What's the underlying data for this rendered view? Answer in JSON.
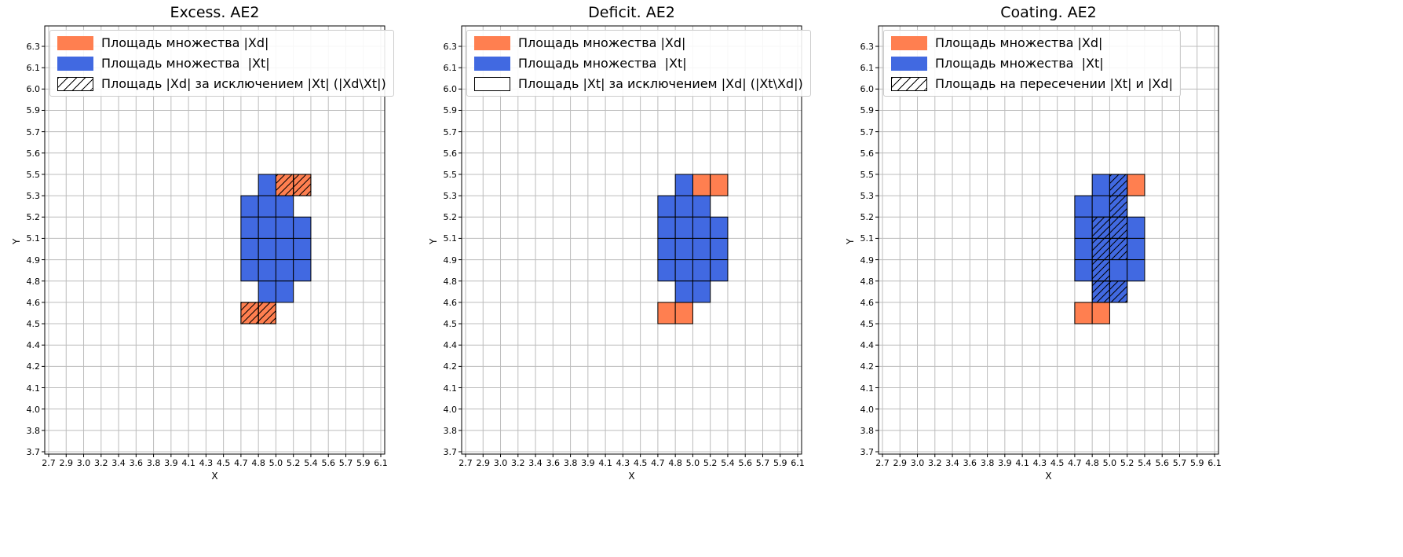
{
  "colors": {
    "orange": "#ff7f50",
    "blue": "#4169e1",
    "grid": "#bcbcbc",
    "axes_edge": "#000000",
    "cell_edge": "#000000",
    "hatch_line": "#000000",
    "legend_border": "#cccccc",
    "text": "#000000"
  },
  "chart_data": [
    {
      "type": "heatmap",
      "title": "Excess. AE2",
      "xlabel": "X",
      "ylabel": "Y",
      "grid": true,
      "legend_position": "upper left",
      "x_ticks": [
        "2.7",
        "2.9",
        "3.0",
        "3.2",
        "3.4",
        "3.6",
        "3.8",
        "3.9",
        "4.1",
        "4.3",
        "4.5",
        "4.7",
        "4.8",
        "5.0",
        "5.2",
        "5.4",
        "5.6",
        "5.7",
        "5.9",
        "6.1"
      ],
      "y_ticks_top_to_bottom": [
        "6.3",
        "6.1",
        "6.0",
        "5.9",
        "5.7",
        "5.6",
        "5.5",
        "5.3",
        "5.2",
        "5.1",
        "4.9",
        "4.8",
        "4.6",
        "4.5",
        "4.4",
        "4.2",
        "4.1",
        "4.0",
        "3.8",
        "3.7"
      ],
      "legend": [
        {
          "swatch": "solid-orange",
          "label": "Площадь множества |Xd|"
        },
        {
          "swatch": "solid-blue",
          "label": "Площадь множества  |Xt|"
        },
        {
          "swatch": "hatch",
          "label": "Площадь |Xd| за исключением |Xt| (|Xd\\Xt|)"
        }
      ],
      "cells": {
        "blue": [
          [
            12,
            6
          ],
          [
            11,
            7
          ],
          [
            12,
            7
          ],
          [
            13,
            7
          ],
          [
            11,
            8
          ],
          [
            12,
            8
          ],
          [
            13,
            8
          ],
          [
            14,
            8
          ],
          [
            11,
            9
          ],
          [
            12,
            9
          ],
          [
            13,
            9
          ],
          [
            14,
            9
          ],
          [
            11,
            10
          ],
          [
            12,
            10
          ],
          [
            13,
            10
          ],
          [
            14,
            10
          ],
          [
            12,
            11
          ],
          [
            13,
            11
          ]
        ],
        "orange": [
          [
            13,
            6
          ],
          [
            14,
            6
          ],
          [
            11,
            12
          ],
          [
            12,
            12
          ]
        ],
        "hatched": [
          [
            13,
            6
          ],
          [
            14,
            6
          ],
          [
            11,
            12
          ],
          [
            12,
            12
          ]
        ]
      }
    },
    {
      "type": "heatmap",
      "title": "Deficit. AE2",
      "xlabel": "X",
      "ylabel": "Y",
      "grid": true,
      "legend_position": "upper left",
      "x_ticks": [
        "2.7",
        "2.9",
        "3.0",
        "3.2",
        "3.4",
        "3.6",
        "3.8",
        "3.9",
        "4.1",
        "4.3",
        "4.5",
        "4.7",
        "4.8",
        "5.0",
        "5.2",
        "5.4",
        "5.6",
        "5.7",
        "5.9",
        "6.1"
      ],
      "y_ticks_top_to_bottom": [
        "6.3",
        "6.1",
        "6.0",
        "5.9",
        "5.7",
        "5.6",
        "5.5",
        "5.3",
        "5.2",
        "5.1",
        "4.9",
        "4.8",
        "4.6",
        "4.5",
        "4.4",
        "4.2",
        "4.1",
        "4.0",
        "3.8",
        "3.7"
      ],
      "legend": [
        {
          "swatch": "solid-orange",
          "label": "Площадь множества |Xd|"
        },
        {
          "swatch": "solid-blue",
          "label": "Площадь множества  |Xt|"
        },
        {
          "swatch": "empty",
          "label": "Площадь |Xt| за исключением |Xd| (|Xt\\Xd|)"
        }
      ],
      "cells": {
        "blue": [
          [
            12,
            6
          ],
          [
            11,
            7
          ],
          [
            12,
            7
          ],
          [
            13,
            7
          ],
          [
            11,
            8
          ],
          [
            12,
            8
          ],
          [
            13,
            8
          ],
          [
            14,
            8
          ],
          [
            11,
            9
          ],
          [
            12,
            9
          ],
          [
            13,
            9
          ],
          [
            14,
            9
          ],
          [
            11,
            10
          ],
          [
            12,
            10
          ],
          [
            13,
            10
          ],
          [
            14,
            10
          ],
          [
            12,
            11
          ],
          [
            13,
            11
          ]
        ],
        "orange": [
          [
            13,
            6
          ],
          [
            14,
            6
          ],
          [
            11,
            12
          ],
          [
            12,
            12
          ]
        ],
        "hatched": []
      }
    },
    {
      "type": "heatmap",
      "title": "Coating. AE2",
      "xlabel": "X",
      "ylabel": "Y",
      "grid": true,
      "legend_position": "upper left",
      "x_ticks": [
        "2.7",
        "2.9",
        "3.0",
        "3.2",
        "3.4",
        "3.6",
        "3.8",
        "3.9",
        "4.1",
        "4.3",
        "4.5",
        "4.7",
        "4.8",
        "5.0",
        "5.2",
        "5.4",
        "5.6",
        "5.7",
        "5.9",
        "6.1"
      ],
      "y_ticks_top_to_bottom": [
        "6.3",
        "6.1",
        "6.0",
        "5.9",
        "5.7",
        "5.6",
        "5.5",
        "5.3",
        "5.2",
        "5.1",
        "4.9",
        "4.8",
        "4.6",
        "4.5",
        "4.4",
        "4.2",
        "4.1",
        "4.0",
        "3.8",
        "3.7"
      ],
      "legend": [
        {
          "swatch": "solid-orange",
          "label": "Площадь множества |Xd|"
        },
        {
          "swatch": "solid-blue",
          "label": "Площадь множества  |Xt|"
        },
        {
          "swatch": "hatch",
          "label": "Площадь на пересечении |Xt| и |Xd|"
        }
      ],
      "cells": {
        "blue": [
          [
            12,
            6
          ],
          [
            13,
            6
          ],
          [
            11,
            7
          ],
          [
            12,
            7
          ],
          [
            13,
            7
          ],
          [
            11,
            8
          ],
          [
            12,
            8
          ],
          [
            13,
            8
          ],
          [
            14,
            8
          ],
          [
            11,
            9
          ],
          [
            12,
            9
          ],
          [
            13,
            9
          ],
          [
            14,
            9
          ],
          [
            11,
            10
          ],
          [
            12,
            10
          ],
          [
            13,
            10
          ],
          [
            14,
            10
          ],
          [
            12,
            11
          ],
          [
            13,
            11
          ]
        ],
        "orange": [
          [
            14,
            6
          ],
          [
            11,
            12
          ],
          [
            12,
            12
          ]
        ],
        "hatched": [
          [
            13,
            6
          ],
          [
            13,
            7
          ],
          [
            12,
            8
          ],
          [
            13,
            8
          ],
          [
            12,
            9
          ],
          [
            13,
            9
          ],
          [
            12,
            10
          ],
          [
            12,
            11
          ],
          [
            13,
            11
          ]
        ]
      }
    }
  ]
}
